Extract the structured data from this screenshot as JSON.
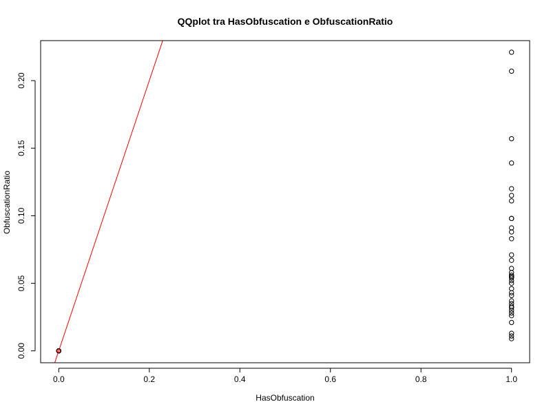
{
  "chart_data": {
    "type": "scatter",
    "title": "QQplot tra HasObfuscation e ObfuscationRatio",
    "xlabel": "HasObfuscation",
    "ylabel": "ObfuscationRatio",
    "xlim": [
      -0.04,
      1.04
    ],
    "ylim": [
      -0.0088,
      0.2296
    ],
    "x_ticks": [
      0.0,
      0.2,
      0.4,
      0.6,
      0.8,
      1.0
    ],
    "x_tick_labels": [
      "0.0",
      "0.2",
      "0.4",
      "0.6",
      "0.8",
      "1.0"
    ],
    "y_ticks": [
      0.0,
      0.05,
      0.1,
      0.15,
      0.2
    ],
    "y_tick_labels": [
      "0.00",
      "0.05",
      "0.10",
      "0.15",
      "0.20"
    ],
    "grid": false,
    "series": [
      {
        "name": "points",
        "marker": "open-circle",
        "color": "#000000",
        "x": [
          0,
          0,
          0,
          0,
          0,
          1,
          1,
          1,
          1,
          1,
          1,
          1,
          1,
          1,
          1,
          1,
          1,
          1,
          1,
          1,
          1,
          1,
          1,
          1,
          1,
          1,
          1,
          1,
          1,
          1,
          1,
          1,
          1,
          1,
          1,
          1,
          1,
          1,
          1,
          1,
          1
        ],
        "y": [
          0,
          0,
          0,
          0,
          0,
          0.009,
          0.011,
          0.013,
          0.021,
          0.026,
          0.028,
          0.03,
          0.032,
          0.033,
          0.035,
          0.037,
          0.041,
          0.043,
          0.046,
          0.05,
          0.052,
          0.054,
          0.055,
          0.056,
          0.058,
          0.061,
          0.067,
          0.071,
          0.083,
          0.088,
          0.091,
          0.098,
          0.098,
          0.111,
          0.115,
          0.12,
          0.139,
          0.157,
          0.207,
          0.221,
          0.055
        ]
      }
    ],
    "reference_line": {
      "name": "qqline",
      "color": "#ff0000",
      "intercept": 0,
      "slope": 1
    },
    "highlight_point": {
      "x": 0,
      "y": 0,
      "color": "#ff0000"
    }
  }
}
